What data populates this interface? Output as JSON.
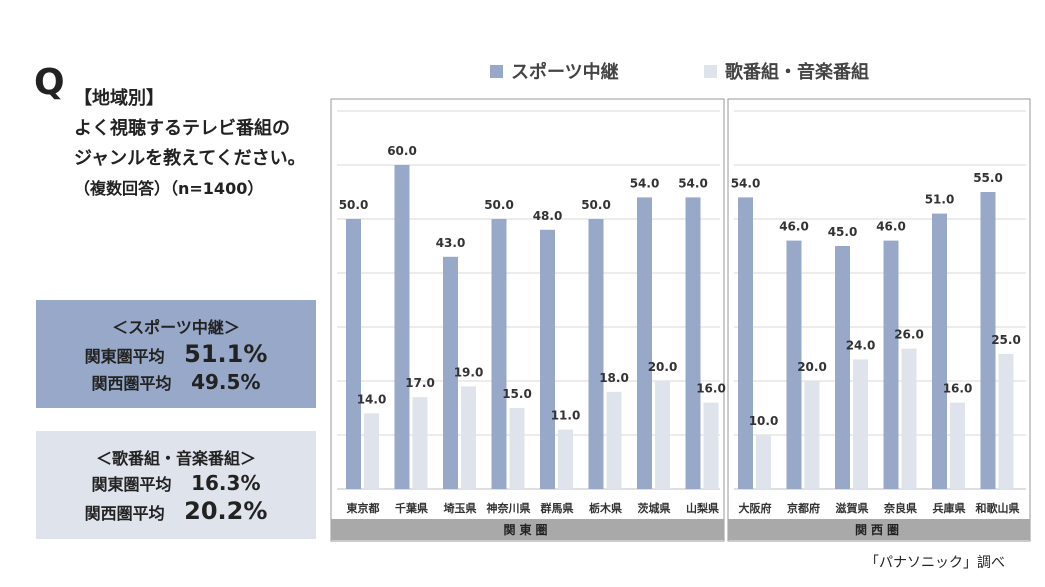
{
  "question": {
    "mark": "Q",
    "line1": "【地域別】",
    "line2": "よく視聴するテレビ番組の",
    "line3": "ジャンルを教えてください。",
    "line4": "（複数回答）（n=1400）"
  },
  "summary": {
    "sports": {
      "title": "＜スポーツ中継＞",
      "kanto_label": "関東圏平均",
      "kanto_value": "51.1%",
      "kansai_label": "関西圏平均",
      "kansai_value": "49.5%"
    },
    "music": {
      "title": "＜歌番組・音楽番組＞",
      "kanto_label": "関東圏平均",
      "kanto_value": "16.3%",
      "kansai_label": "関西圏平均",
      "kansai_value": "20.2%"
    }
  },
  "source": "「パナソニック」調べ",
  "colors": {
    "sports": "#97a8c8",
    "music": "#dfe3ec",
    "group_band": "#a9a9a9"
  },
  "chart_data": {
    "type": "bar",
    "ylim": [
      0,
      70
    ],
    "grid": true,
    "legend_position": "top",
    "series": [
      {
        "name": "スポーツ中継",
        "values": [
          50.0,
          60.0,
          43.0,
          50.0,
          48.0,
          50.0,
          54.0,
          54.0,
          54.0,
          46.0,
          45.0,
          46.0,
          51.0,
          55.0
        ]
      },
      {
        "name": "歌番組・音楽番組",
        "values": [
          14.0,
          17.0,
          19.0,
          15.0,
          11.0,
          18.0,
          20.0,
          16.0,
          10.0,
          20.0,
          24.0,
          26.0,
          16.0,
          25.0
        ]
      }
    ],
    "categories": [
      "東京都",
      "千葉県",
      "埼玉県",
      "神奈川県",
      "群馬県",
      "栃木県",
      "茨城県",
      "山梨県",
      "大阪府",
      "京都府",
      "滋賀県",
      "奈良県",
      "兵庫県",
      "和歌山県"
    ],
    "groups": [
      {
        "name": "関東圏",
        "count": 8
      },
      {
        "name": "関西圏",
        "count": 6
      }
    ]
  }
}
